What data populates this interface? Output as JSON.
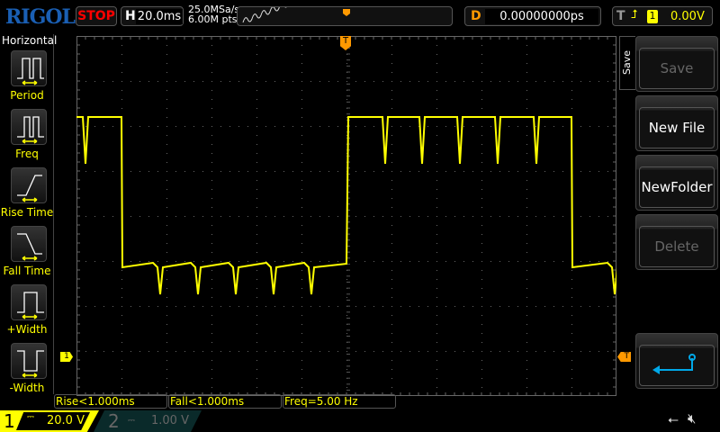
{
  "header": {
    "logo": "RIGOL",
    "run_state": "STOP",
    "h_label": "H",
    "timebase": "20.0ms",
    "sample_rate": "25.0MSa/s",
    "memory_depth": "6.00M pts",
    "delay_label": "D",
    "delay": "0.00000000ps",
    "trigger_label": "T",
    "trigger_source": "1",
    "trigger_level": "0.00V",
    "trigger_edge_icon": "rising-edge-icon"
  },
  "left_menu": {
    "title": "Horizontal",
    "items": [
      {
        "label": "Period"
      },
      {
        "label": "Freq"
      },
      {
        "label": "Rise Time"
      },
      {
        "label": "Fall Time"
      },
      {
        "label": "+Width"
      },
      {
        "label": "-Width"
      }
    ]
  },
  "right_menu": {
    "title": "Save",
    "items": [
      {
        "label": "Save",
        "enabled": false
      },
      {
        "label": "New File",
        "enabled": true
      },
      {
        "label": "NewFolder",
        "enabled": true
      },
      {
        "label": "Delete",
        "enabled": false
      }
    ],
    "back_icon": "return-arrow-icon"
  },
  "measurements": [
    "Rise<1.000ms",
    "Fall<1.000ms",
    "Freq=5.00 Hz"
  ],
  "channels": [
    {
      "num": "1",
      "coupling": "DC",
      "scale": "20.0 V",
      "active": true
    },
    {
      "num": "2",
      "coupling": "DC",
      "scale": "1.00 V",
      "active": false
    }
  ],
  "markers": {
    "ch1": "1",
    "trigger": "T"
  },
  "colors": {
    "ch1": "#ffff00",
    "trigger": "#ff8c00",
    "stop": "#ff0000",
    "accent": "#00a8e8"
  },
  "status_icons": [
    "usb-icon",
    "speaker-muted-icon"
  ]
}
